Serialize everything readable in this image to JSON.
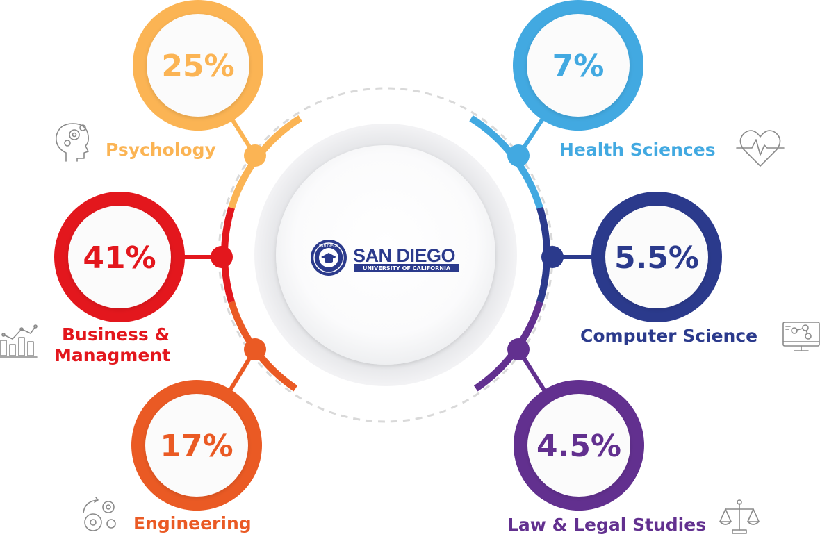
{
  "logo": {
    "name": "SAN DIEGO",
    "subtitle": "UNIVERSITY OF CALIFORNIA",
    "seal_text": "SAN DIEGO"
  },
  "colors": {
    "psychology": "#FBB454",
    "business": "#E3171D",
    "engineering": "#EA5A24",
    "health": "#42A9E1",
    "computer": "#2B3A8C",
    "law": "#62308F",
    "icon_gray": "#8A8A8A",
    "ring_gray": "#E4E5E8"
  },
  "chart_data": {
    "type": "diagram",
    "items": [
      {
        "key": "psychology",
        "label": "Psychology",
        "value": "25%",
        "icon": "head-gears-icon"
      },
      {
        "key": "business",
        "label_lines": [
          "Business &",
          "Managment"
        ],
        "value": "41%",
        "icon": "bar-chart-icon"
      },
      {
        "key": "engineering",
        "label": "Engineering",
        "value": "17%",
        "icon": "gears-icon"
      },
      {
        "key": "health",
        "label": "Health Sciences",
        "value": "7%",
        "icon": "heartbeat-icon"
      },
      {
        "key": "computer",
        "label": "Computer Science",
        "value": "5.5%",
        "icon": "monitor-network-icon"
      },
      {
        "key": "law",
        "label": "Law & Legal Studies",
        "value": "4.5%",
        "icon": "scales-icon"
      }
    ]
  }
}
